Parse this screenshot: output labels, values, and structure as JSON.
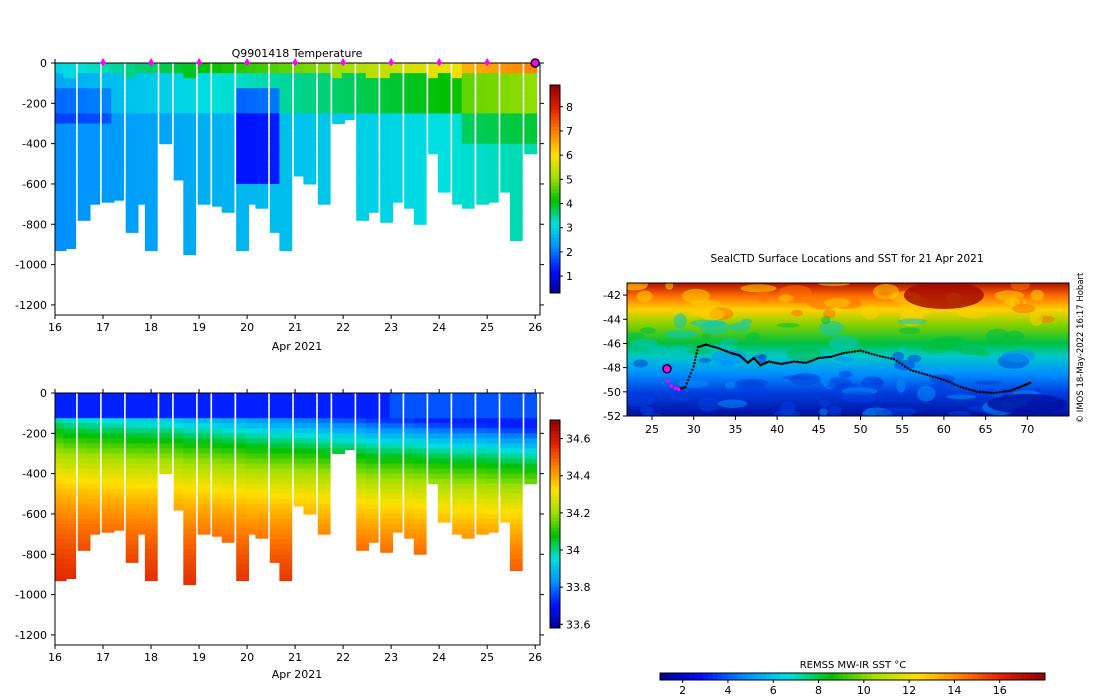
{
  "chart_data": [
    {
      "type": "heatmap",
      "title": "Q9901418  Temperature",
      "xlabel": "Apr 2021",
      "ylabel": "",
      "xlim": [
        16,
        26.1
      ],
      "ylim": [
        -1250,
        0
      ],
      "x_ticks": [
        "16",
        "17",
        "18",
        "19",
        "20",
        "21",
        "22",
        "23",
        "24",
        "25",
        "26"
      ],
      "y_ticks": [
        "0",
        "-200",
        "-400",
        "-600",
        "-800",
        "-1000",
        "-1200"
      ],
      "colorbar": {
        "min": 0.3,
        "max": 8.9,
        "ticks": [
          "1",
          "2",
          "3",
          "4",
          "5",
          "6",
          "7",
          "8"
        ],
        "colors": [
          "#00008f",
          "#0010ff",
          "#0090ff",
          "#00e0e0",
          "#00c000",
          "#a0e000",
          "#ffe000",
          "#ff8000",
          "#e02000",
          "#900000"
        ]
      },
      "surface_markers_day": [
        17,
        18,
        19,
        20,
        21,
        22,
        23,
        24,
        25
      ],
      "latest_marker_day": 26,
      "profiles": [
        {
          "day": 16.1,
          "depth": 930
        },
        {
          "day": 16.3,
          "depth": 920
        },
        {
          "day": 16.6,
          "depth": 780
        },
        {
          "day": 16.8,
          "depth": 700
        },
        {
          "day": 17.1,
          "depth": 690
        },
        {
          "day": 17.3,
          "depth": 680
        },
        {
          "day": 17.6,
          "depth": 840
        },
        {
          "day": 17.8,
          "depth": 700
        },
        {
          "day": 18.0,
          "depth": 930
        },
        {
          "day": 18.3,
          "depth": 400
        },
        {
          "day": 18.6,
          "depth": 580
        },
        {
          "day": 18.8,
          "depth": 950
        },
        {
          "day": 19.1,
          "depth": 700
        },
        {
          "day": 19.4,
          "depth": 710
        },
        {
          "day": 19.6,
          "depth": 740
        },
        {
          "day": 19.9,
          "depth": 930
        },
        {
          "day": 20.1,
          "depth": 700
        },
        {
          "day": 20.3,
          "depth": 720
        },
        {
          "day": 20.6,
          "depth": 840
        },
        {
          "day": 20.8,
          "depth": 930
        },
        {
          "day": 21.1,
          "depth": 560
        },
        {
          "day": 21.3,
          "depth": 600
        },
        {
          "day": 21.6,
          "depth": 700
        },
        {
          "day": 21.9,
          "depth": 300
        },
        {
          "day": 22.1,
          "depth": 280
        },
        {
          "day": 22.4,
          "depth": 780
        },
        {
          "day": 22.6,
          "depth": 740
        },
        {
          "day": 22.9,
          "depth": 790
        },
        {
          "day": 23.1,
          "depth": 690
        },
        {
          "day": 23.4,
          "depth": 720
        },
        {
          "day": 23.6,
          "depth": 800
        },
        {
          "day": 23.9,
          "depth": 450
        },
        {
          "day": 24.1,
          "depth": 640
        },
        {
          "day": 24.4,
          "depth": 700
        },
        {
          "day": 24.6,
          "depth": 720
        },
        {
          "day": 24.9,
          "depth": 700
        },
        {
          "day": 25.1,
          "depth": 690
        },
        {
          "day": 25.4,
          "depth": 640
        },
        {
          "day": 25.6,
          "depth": 880
        },
        {
          "day": 25.9,
          "depth": 450
        }
      ]
    },
    {
      "type": "heatmap",
      "title": "",
      "xlabel": "Apr 2021",
      "ylabel": "",
      "xlim": [
        16,
        26.1
      ],
      "ylim": [
        -1250,
        0
      ],
      "x_ticks": [
        "16",
        "17",
        "18",
        "19",
        "20",
        "21",
        "22",
        "23",
        "24",
        "25",
        "26"
      ],
      "y_ticks": [
        "0",
        "-200",
        "-400",
        "-600",
        "-800",
        "-1000",
        "-1200"
      ],
      "colorbar": {
        "min": 33.58,
        "max": 34.7,
        "ticks": [
          "33.6",
          "33.8",
          "34",
          "34.2",
          "34.4",
          "34.6"
        ],
        "colors": [
          "#00008f",
          "#0010ff",
          "#0090ff",
          "#00e0e0",
          "#00c000",
          "#a0e000",
          "#ffe000",
          "#ff8000",
          "#e02000",
          "#900000"
        ]
      }
    },
    {
      "type": "map",
      "title": "SealCTD Surface Locations and SST for 21 Apr 2021",
      "xlim": [
        22,
        75
      ],
      "ylim": [
        -52,
        -41
      ],
      "x_ticks": [
        "25",
        "30",
        "35",
        "40",
        "45",
        "50",
        "55",
        "60",
        "65",
        "70"
      ],
      "y_ticks": [
        "-42",
        "-44",
        "-46",
        "-48",
        "-50",
        "-52"
      ],
      "track": [
        [
          28.2,
          -49.8
        ],
        [
          29.0,
          -49.6
        ],
        [
          30.0,
          -47.9
        ],
        [
          30.5,
          -46.3
        ],
        [
          31.5,
          -46.1
        ],
        [
          33.0,
          -46.4
        ],
        [
          34.5,
          -46.8
        ],
        [
          35.5,
          -47.0
        ],
        [
          36.5,
          -47.6
        ],
        [
          37.2,
          -47.2
        ],
        [
          38.0,
          -47.8
        ],
        [
          39.0,
          -47.5
        ],
        [
          40.5,
          -47.7
        ],
        [
          42.0,
          -47.5
        ],
        [
          43.5,
          -47.6
        ],
        [
          45.0,
          -47.2
        ],
        [
          46.5,
          -47.1
        ],
        [
          48.0,
          -46.8
        ],
        [
          50.0,
          -46.6
        ],
        [
          52.0,
          -47.0
        ],
        [
          54.0,
          -47.3
        ],
        [
          56.0,
          -48.2
        ],
        [
          58.0,
          -48.6
        ],
        [
          60.0,
          -49.0
        ],
        [
          62.0,
          -49.6
        ],
        [
          64.0,
          -50.0
        ],
        [
          66.0,
          -50.1
        ],
        [
          68.0,
          -49.9
        ],
        [
          69.5,
          -49.5
        ],
        [
          70.5,
          -49.2
        ]
      ],
      "recent_track": [
        [
          26.8,
          -48.4
        ],
        [
          26.9,
          -49.1
        ],
        [
          27.3,
          -49.5
        ],
        [
          27.8,
          -49.7
        ],
        [
          28.2,
          -49.8
        ]
      ],
      "latest_position": [
        26.8,
        -48.1
      ],
      "colorbar": {
        "label": "REMSS MW-IR SST °C",
        "min": 1,
        "max": 18,
        "ticks": [
          "2",
          "4",
          "6",
          "8",
          "10",
          "12",
          "14",
          "16"
        ],
        "colors": [
          "#00008f",
          "#0010ff",
          "#0090ff",
          "#00e0e0",
          "#00c000",
          "#a0e000",
          "#ffe000",
          "#ff8000",
          "#e02000",
          "#900000"
        ]
      }
    }
  ],
  "credit": "© IMOS 18-May-2022 16:17 Hobart"
}
